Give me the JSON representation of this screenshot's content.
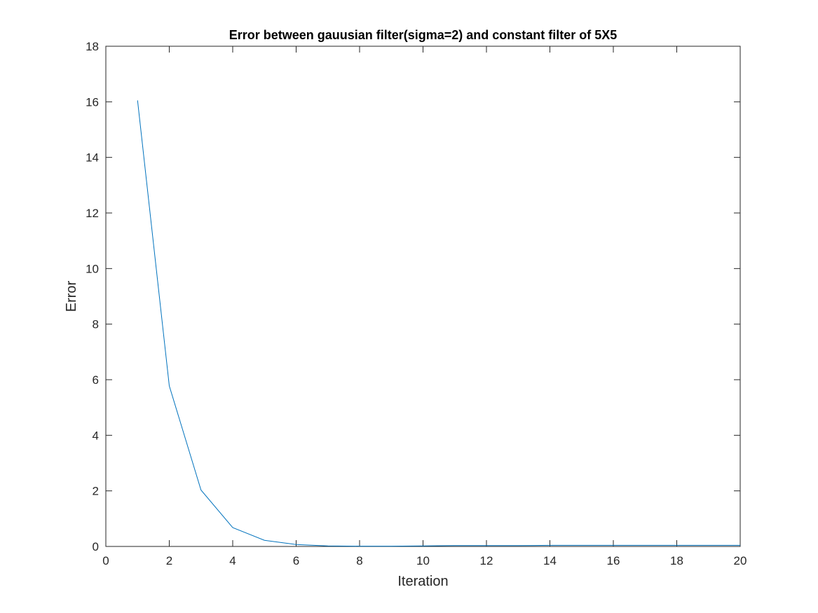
{
  "chart_data": {
    "type": "line",
    "title": "Error between gauusian filter(sigma=2) and constant filter of 5X5",
    "xlabel": "Iteration",
    "ylabel": "Error",
    "xlim": [
      0,
      20
    ],
    "ylim": [
      0,
      18
    ],
    "xticks": [
      "0",
      "2",
      "4",
      "6",
      "8",
      "10",
      "12",
      "14",
      "16",
      "18",
      "20"
    ],
    "yticks": [
      "0",
      "2",
      "4",
      "6",
      "8",
      "10",
      "12",
      "14",
      "16",
      "18"
    ],
    "grid": false,
    "series": [
      {
        "color": "#0072BD",
        "x": [
          1,
          2,
          3,
          4,
          5,
          6,
          7,
          8,
          9,
          10,
          11,
          12,
          13,
          14,
          15,
          16,
          17,
          18,
          19,
          20
        ],
        "y": [
          16.05,
          5.78,
          2.03,
          0.68,
          0.22,
          0.07,
          0.02,
          0.01,
          0.01,
          0.02,
          0.03,
          0.03,
          0.03,
          0.04,
          0.04,
          0.04,
          0.04,
          0.04,
          0.04,
          0.04
        ]
      }
    ]
  }
}
